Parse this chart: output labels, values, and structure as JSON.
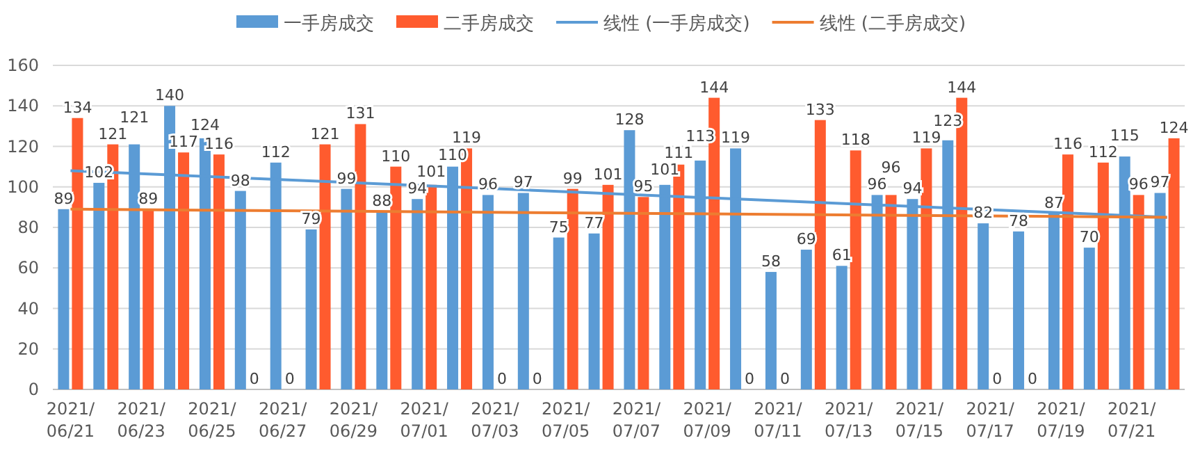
{
  "chart_data": {
    "type": "bar",
    "categories": [
      "2021/\n06/21",
      null,
      "2021/\n06/23",
      null,
      "2021/\n06/25",
      null,
      "2021/\n06/27",
      null,
      "2021/\n06/29",
      null,
      "2021/\n07/01",
      null,
      "2021/\n07/03",
      null,
      "2021/\n07/05",
      null,
      "2021/\n07/07",
      null,
      "2021/\n07/09",
      null,
      "2021/\n07/11",
      null,
      "2021/\n07/13",
      null,
      "2021/\n07/15",
      null,
      "2021/\n07/17",
      null,
      "2021/\n07/19",
      null,
      "2021/\n07/21",
      null
    ],
    "series": [
      {
        "name": "一手房成交",
        "color": "#5b9bd5",
        "values": [
          89,
          102,
          121,
          140,
          124,
          98,
          112,
          79,
          99,
          88,
          94,
          110,
          96,
          97,
          75,
          77,
          128,
          101,
          113,
          119,
          58,
          69,
          61,
          96,
          94,
          123,
          82,
          78,
          87,
          70,
          115,
          97
        ],
        "value_labels": [
          "89",
          "102",
          "121",
          "140",
          "124",
          "98",
          "112",
          "79",
          "99",
          "88",
          "94",
          "110",
          "96",
          "97",
          "75",
          "77",
          "128",
          "101",
          "113",
          "119",
          "58",
          "69",
          "61",
          "96",
          "94",
          "123",
          "82",
          "78",
          "87",
          "70",
          "115",
          "97"
        ]
      },
      {
        "name": "二手房成交",
        "color": "#ff5b2e",
        "values": [
          134,
          121,
          89,
          117,
          116,
          0,
          0,
          121,
          131,
          110,
          101,
          119,
          0,
          0,
          99,
          101,
          95,
          111,
          144,
          0,
          0,
          133,
          118,
          96,
          119,
          144,
          0,
          0,
          116,
          112,
          96,
          124
        ],
        "value_labels": [
          "134",
          "121",
          "89",
          "117",
          "116",
          "0",
          "0",
          "121",
          "131",
          "110",
          "101",
          "119",
          "0",
          "0",
          "99",
          "101",
          "95",
          "111",
          "144",
          "0",
          "0",
          "133",
          "118",
          "96",
          "119",
          "144",
          "0",
          "0",
          "116",
          "112",
          "96",
          "124"
        ]
      },
      {
        "name": "线性 (一手房成交)",
        "type": "line",
        "color": "#5b9bd5",
        "values": [
          108,
          null,
          null,
          null,
          null,
          null,
          null,
          null,
          null,
          null,
          null,
          null,
          null,
          null,
          null,
          null,
          null,
          null,
          null,
          null,
          null,
          null,
          null,
          null,
          null,
          null,
          null,
          null,
          null,
          null,
          null,
          85
        ]
      },
      {
        "name": "线性 (二手房成交)",
        "type": "line",
        "color": "#ed7d31",
        "values": [
          89,
          null,
          null,
          null,
          null,
          null,
          null,
          null,
          null,
          null,
          null,
          null,
          null,
          null,
          null,
          null,
          null,
          null,
          null,
          null,
          null,
          null,
          null,
          null,
          null,
          null,
          null,
          null,
          null,
          null,
          null,
          85
        ]
      }
    ],
    "ylim": [
      0,
      160
    ],
    "yticks": [
      0,
      20,
      40,
      60,
      80,
      100,
      120,
      140,
      160
    ],
    "grid": "y",
    "legend": "top"
  }
}
